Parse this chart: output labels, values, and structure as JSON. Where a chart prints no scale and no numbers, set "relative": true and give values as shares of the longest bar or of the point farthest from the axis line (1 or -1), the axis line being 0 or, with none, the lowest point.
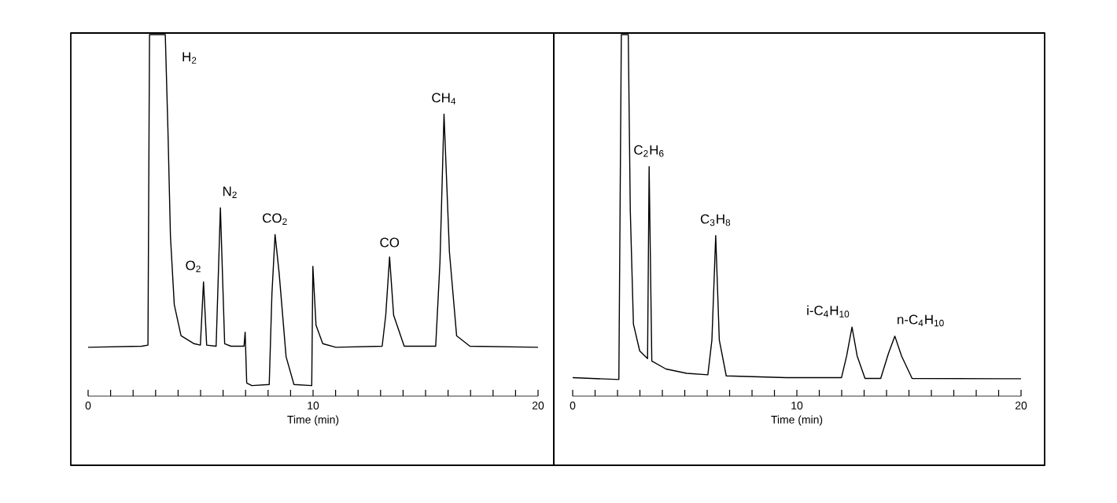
{
  "chart_data": [
    {
      "type": "line",
      "relative": true,
      "color": "#000000",
      "marker": "none",
      "line_style": "solid",
      "grid": false,
      "xlabel": "Time (min)",
      "xlim": [
        0,
        20
      ],
      "xticks": [
        0,
        {
          "value": 1,
          "label": null
        },
        {
          "value": 2,
          "label": null
        },
        {
          "value": 3,
          "label": null
        },
        {
          "value": 4,
          "label": null
        },
        {
          "value": 5,
          "label": null
        },
        {
          "value": 6,
          "label": null
        },
        {
          "value": 7,
          "label": null
        },
        {
          "value": 8,
          "label": null
        },
        {
          "value": 9,
          "label": null
        },
        10,
        {
          "value": 11,
          "label": null
        },
        {
          "value": 12,
          "label": null
        },
        {
          "value": 13,
          "label": null
        },
        {
          "value": 14,
          "label": null
        },
        {
          "value": 15,
          "label": null
        },
        {
          "value": 16,
          "label": null
        },
        {
          "value": 17,
          "label": null
        },
        {
          "value": 18,
          "label": null
        },
        {
          "value": 19,
          "label": null
        },
        20
      ],
      "x": [
        0,
        2.38,
        2.66,
        2.73,
        3.43,
        3.55,
        3.66,
        3.83,
        4.13,
        4.71,
        4.99,
        5.13,
        5.27,
        5.69,
        5.88,
        6.07,
        6.35,
        6.93,
        6.98,
        7.05,
        7.28,
        8.05,
        8.17,
        8.31,
        8.49,
        8.8,
        9.15,
        9.94,
        9.99,
        10.13,
        10.43,
        11.01,
        13.07,
        13.23,
        13.4,
        13.58,
        14.05,
        15.45,
        15.64,
        15.82,
        16.06,
        16.38,
        16.97,
        20
      ],
      "values": [
        0.135,
        0.138,
        0.141,
        1,
        1,
        0.732,
        0.442,
        0.253,
        0.167,
        0.145,
        0.141,
        0.316,
        0.141,
        0.138,
        0.521,
        0.145,
        0.138,
        0.138,
        0.177,
        0.036,
        0.029,
        0.032,
        0.282,
        0.447,
        0.341,
        0.109,
        0.032,
        0.029,
        0.359,
        0.196,
        0.145,
        0.135,
        0.138,
        0.224,
        0.385,
        0.224,
        0.138,
        0.138,
        0.37,
        0.78,
        0.399,
        0.167,
        0.138,
        0.135
      ],
      "annotations": [
        {
          "text": "H$_{2}$",
          "x": 3.1,
          "y": 1
        },
        {
          "text": "O$_{2}$",
          "x": 5.13,
          "y": 0.316
        },
        {
          "text": "N$_{2}$",
          "x": 5.88,
          "y": 0.521
        },
        {
          "text": "CO$_{2}$",
          "x": 8.31,
          "y": 0.447
        },
        {
          "text": "CO",
          "x": 13.4,
          "y": 0.385
        },
        {
          "text": "CH$_{4}$",
          "x": 15.82,
          "y": 0.78
        }
      ]
    },
    {
      "type": "line",
      "relative": true,
      "color": "#000000",
      "marker": "none",
      "line_style": "solid",
      "grid": false,
      "xlabel": "Time (min)",
      "xlim": [
        0,
        20
      ],
      "xticks": [
        0,
        {
          "value": 1,
          "label": null
        },
        {
          "value": 2,
          "label": null
        },
        {
          "value": 3,
          "label": null
        },
        {
          "value": 4,
          "label": null
        },
        {
          "value": 5,
          "label": null
        },
        {
          "value": 6,
          "label": null
        },
        {
          "value": 7,
          "label": null
        },
        {
          "value": 8,
          "label": null
        },
        {
          "value": 9,
          "label": null
        },
        10,
        {
          "value": 11,
          "label": null
        },
        {
          "value": 12,
          "label": null
        },
        {
          "value": 13,
          "label": null
        },
        {
          "value": 14,
          "label": null
        },
        {
          "value": 15,
          "label": null
        },
        {
          "value": 16,
          "label": null
        },
        {
          "value": 17,
          "label": null
        },
        {
          "value": 18,
          "label": null
        },
        {
          "value": 19,
          "label": null
        },
        20
      ],
      "x": [
        0,
        2.06,
        2.17,
        2.48,
        2.57,
        2.71,
        2.99,
        3.34,
        3.41,
        3.53,
        4.16,
        5.09,
        6.03,
        6.21,
        6.38,
        6.54,
        6.85,
        9.53,
        11.99,
        12.22,
        12.46,
        12.69,
        13.04,
        13.74,
        14.09,
        14.37,
        14.67,
        15.14,
        20
      ],
      "values": [
        0.051,
        0.046,
        1,
        1,
        0.513,
        0.199,
        0.125,
        0.104,
        0.635,
        0.097,
        0.075,
        0.063,
        0.059,
        0.155,
        0.444,
        0.155,
        0.056,
        0.051,
        0.051,
        0.111,
        0.191,
        0.111,
        0.049,
        0.049,
        0.119,
        0.166,
        0.111,
        0.049,
        0.048
      ],
      "annotations": [
        {
          "text": "C$_{2}$H$_{6}$",
          "x": 3.41,
          "y": 0.635
        },
        {
          "text": "C$_{3}$H$_{8}$",
          "x": 6.38,
          "y": 0.444
        },
        {
          "text": "i-C$_{4}$H$_{10}$",
          "x": 12.46,
          "y": 0.191
        },
        {
          "text": "n-C$_{4}$H$_{10}$",
          "x": 14.37,
          "y": 0.166
        }
      ]
    }
  ]
}
